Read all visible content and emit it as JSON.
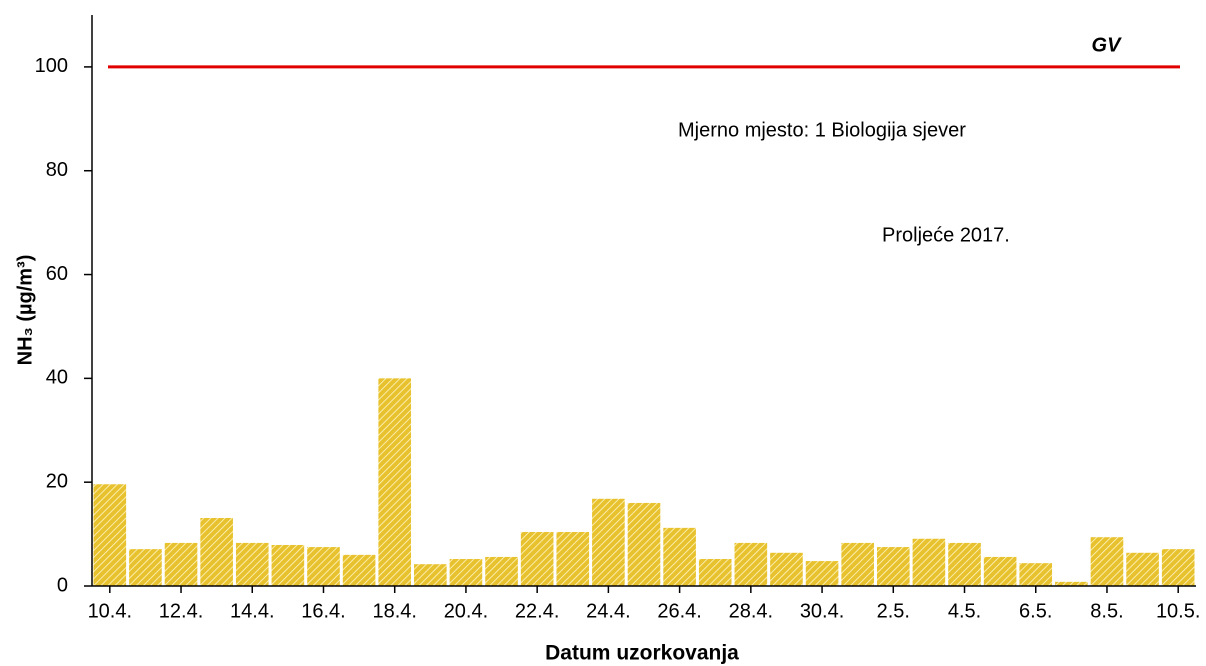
{
  "chart_data": {
    "type": "bar",
    "y_label": "NH₃ (µg/m³)",
    "x_label": "Datum uzorkovanja",
    "annotations": [
      "Mjerno mjesto: 1 Biologija sjever",
      "Proljeće 2017."
    ],
    "categories": [
      "10.4.",
      null,
      "12.4.",
      null,
      "14.4.",
      null,
      "16.4.",
      null,
      "18.4.",
      null,
      "20.4.",
      null,
      "22.4.",
      null,
      "24.4.",
      null,
      "26.4.",
      null,
      "28.4.",
      null,
      "30.4.",
      null,
      "2.5.",
      null,
      "4.5.",
      null,
      "6.5.",
      null,
      "8.5.",
      null,
      "10.5."
    ],
    "values": [
      19.6,
      7.1,
      8.3,
      13.1,
      8.3,
      7.9,
      7.5,
      6.0,
      40.0,
      4.2,
      5.2,
      5.6,
      10.4,
      10.4,
      16.8,
      16.0,
      11.2,
      5.2,
      8.3,
      6.4,
      4.8,
      8.3,
      7.5,
      9.1,
      8.3,
      5.6,
      4.4,
      0.8,
      9.4,
      6.4,
      7.1
    ],
    "color": "#e8c22e",
    "reference_line": {
      "value": 100,
      "label": "GV",
      "color": "#e00000"
    },
    "ylim": [
      0,
      110
    ],
    "yticks": [
      0,
      20,
      40,
      60,
      80,
      100
    ],
    "grid": false
  }
}
